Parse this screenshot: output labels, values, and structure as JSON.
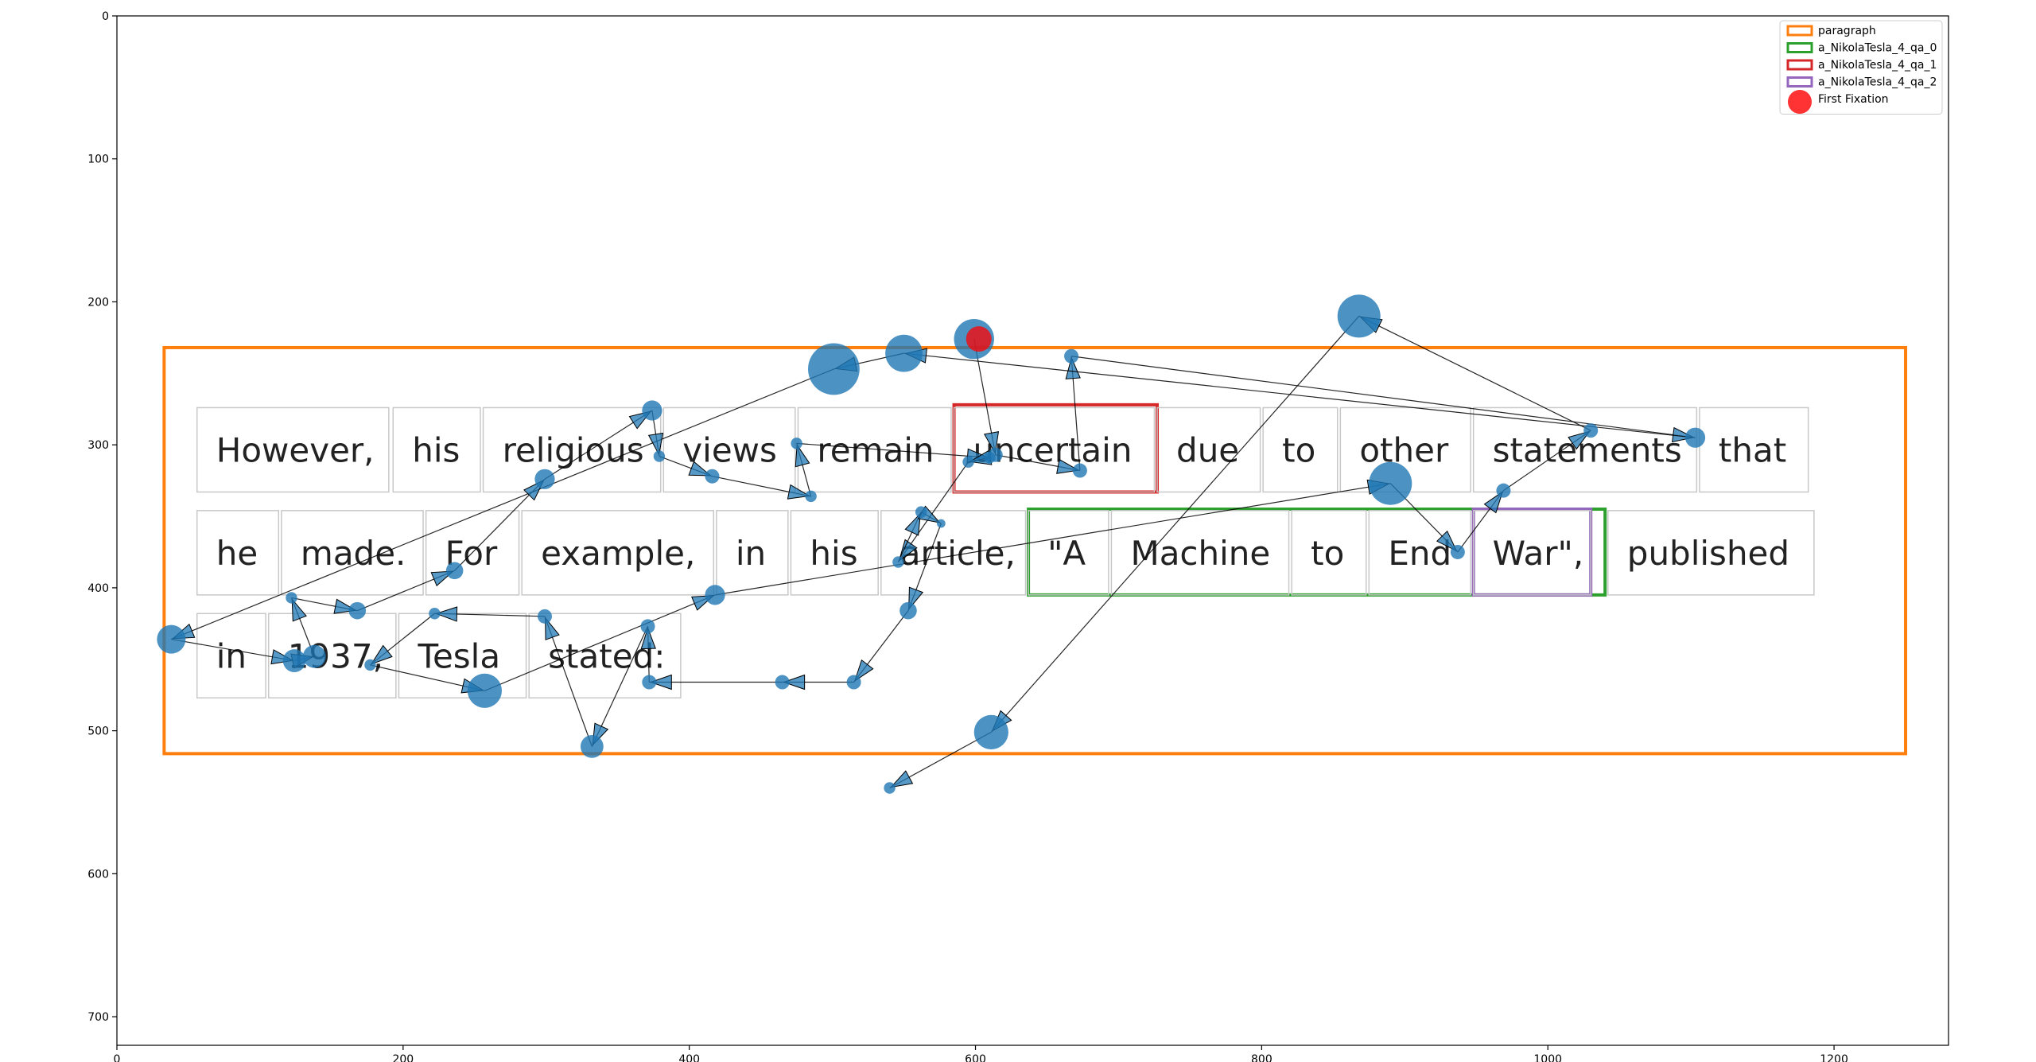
{
  "chart_data": {
    "type": "scatter",
    "title": "",
    "xlabel": "",
    "ylabel": "",
    "xlim": [
      0,
      1280
    ],
    "ylim": [
      720,
      0
    ],
    "xticks": [
      0,
      200,
      400,
      600,
      800,
      1000,
      1200
    ],
    "yticks": [
      0,
      100,
      200,
      300,
      400,
      500,
      600,
      700
    ],
    "grid": false,
    "legend_position": "top-right",
    "colors": {
      "paragraph": "#ff7f0e",
      "qa_0": "#2ca02c",
      "qa_1": "#d62728",
      "qa_2": "#9467bd",
      "fixation": "#1f77b4",
      "first_fixation": "#ff0000",
      "word_box": "#c8c8c8"
    },
    "legend": [
      {
        "label": "paragraph",
        "kind": "box",
        "color": "#ff7f0e"
      },
      {
        "label": "a_NikolaTesla_4_qa_0",
        "kind": "box",
        "color": "#2ca02c"
      },
      {
        "label": "a_NikolaTesla_4_qa_1",
        "kind": "box",
        "color": "#d62728"
      },
      {
        "label": "a_NikolaTesla_4_qa_2",
        "kind": "box",
        "color": "#9467bd"
      },
      {
        "label": "First Fixation",
        "kind": "dot",
        "color": "#ff0000"
      }
    ],
    "regions": [
      {
        "name": "paragraph",
        "x0": 33,
        "y0": 232,
        "x1": 1250,
        "y1": 516,
        "color": "#ff7f0e"
      },
      {
        "name": "a_NikolaTesla_4_qa_0",
        "x0": 637,
        "y0": 345,
        "x1": 1040,
        "y1": 405,
        "color": "#2ca02c"
      },
      {
        "name": "a_NikolaTesla_4_qa_1",
        "x0": 585,
        "y0": 272,
        "x1": 727,
        "y1": 333,
        "color": "#d62728"
      },
      {
        "name": "a_NikolaTesla_4_qa_2",
        "x0": 948,
        "y0": 345,
        "x1": 1030,
        "y1": 405,
        "color": "#9467bd"
      }
    ],
    "words": [
      {
        "text": "However,",
        "x0": 56,
        "y0": 274,
        "x1": 190,
        "y1": 333
      },
      {
        "text": "his",
        "x0": 193,
        "y0": 274,
        "x1": 254,
        "y1": 333
      },
      {
        "text": "religious",
        "x0": 256,
        "y0": 274,
        "x1": 380,
        "y1": 333
      },
      {
        "text": "views",
        "x0": 382,
        "y0": 274,
        "x1": 474,
        "y1": 333
      },
      {
        "text": "remain",
        "x0": 476,
        "y0": 274,
        "x1": 583,
        "y1": 333
      },
      {
        "text": "uncertain",
        "x0": 585,
        "y0": 274,
        "x1": 725,
        "y1": 333
      },
      {
        "text": "due",
        "x0": 727,
        "y0": 274,
        "x1": 799,
        "y1": 333
      },
      {
        "text": "to",
        "x0": 801,
        "y0": 274,
        "x1": 853,
        "y1": 333
      },
      {
        "text": "other",
        "x0": 855,
        "y0": 274,
        "x1": 946,
        "y1": 333
      },
      {
        "text": "statements",
        "x0": 948,
        "y0": 274,
        "x1": 1104,
        "y1": 333
      },
      {
        "text": "that",
        "x0": 1106,
        "y0": 274,
        "x1": 1182,
        "y1": 333
      },
      {
        "text": "he",
        "x0": 56,
        "y0": 346,
        "x1": 113,
        "y1": 405
      },
      {
        "text": "made.",
        "x0": 115,
        "y0": 346,
        "x1": 214,
        "y1": 405
      },
      {
        "text": "For",
        "x0": 216,
        "y0": 346,
        "x1": 281,
        "y1": 405
      },
      {
        "text": "example,",
        "x0": 283,
        "y0": 346,
        "x1": 417,
        "y1": 405
      },
      {
        "text": "in",
        "x0": 419,
        "y0": 346,
        "x1": 469,
        "y1": 405
      },
      {
        "text": "his",
        "x0": 471,
        "y0": 346,
        "x1": 532,
        "y1": 405
      },
      {
        "text": "article,",
        "x0": 534,
        "y0": 346,
        "x1": 635,
        "y1": 405
      },
      {
        "text": "\"A",
        "x0": 637,
        "y0": 346,
        "x1": 693,
        "y1": 405
      },
      {
        "text": "Machine",
        "x0": 695,
        "y0": 346,
        "x1": 819,
        "y1": 405
      },
      {
        "text": "to",
        "x0": 821,
        "y0": 346,
        "x1": 873,
        "y1": 405
      },
      {
        "text": "End",
        "x0": 875,
        "y0": 346,
        "x1": 946,
        "y1": 405
      },
      {
        "text": "War\",",
        "x0": 948,
        "y0": 346,
        "x1": 1030,
        "y1": 405
      },
      {
        "text": "published",
        "x0": 1042,
        "y0": 346,
        "x1": 1186,
        "y1": 405
      },
      {
        "text": "in",
        "x0": 56,
        "y0": 418,
        "x1": 104,
        "y1": 477
      },
      {
        "text": "1937,",
        "x0": 106,
        "y0": 418,
        "x1": 195,
        "y1": 477
      },
      {
        "text": "Tesla",
        "x0": 197,
        "y0": 418,
        "x1": 286,
        "y1": 477
      },
      {
        "text": "stated:",
        "x0": 288,
        "y0": 418,
        "x1": 394,
        "y1": 477
      }
    ],
    "fixations": [
      {
        "x": 599,
        "y": 226,
        "r": 14,
        "first": true
      },
      {
        "x": 614,
        "y": 307,
        "r": 5
      },
      {
        "x": 673,
        "y": 318,
        "r": 5
      },
      {
        "x": 667,
        "y": 238,
        "r": 5
      },
      {
        "x": 1103,
        "y": 295,
        "r": 7
      },
      {
        "x": 550,
        "y": 236,
        "r": 13
      },
      {
        "x": 501,
        "y": 247,
        "r": 18
      },
      {
        "x": 38,
        "y": 436,
        "r": 10
      },
      {
        "x": 124,
        "y": 451,
        "r": 8
      },
      {
        "x": 138,
        "y": 448,
        "r": 8
      },
      {
        "x": 122,
        "y": 407,
        "r": 4
      },
      {
        "x": 168,
        "y": 416,
        "r": 6
      },
      {
        "x": 236,
        "y": 388,
        "r": 6
      },
      {
        "x": 299,
        "y": 324,
        "r": 7
      },
      {
        "x": 374,
        "y": 276,
        "r": 7
      },
      {
        "x": 379,
        "y": 308,
        "r": 4
      },
      {
        "x": 416,
        "y": 322,
        "r": 5
      },
      {
        "x": 485,
        "y": 336,
        "r": 4
      },
      {
        "x": 475,
        "y": 299,
        "r": 4
      },
      {
        "x": 610,
        "y": 309,
        "r": 4
      },
      {
        "x": 595,
        "y": 312,
        "r": 4
      },
      {
        "x": 546,
        "y": 382,
        "r": 4
      },
      {
        "x": 562,
        "y": 347,
        "r": 4
      },
      {
        "x": 576,
        "y": 355,
        "r": 3
      },
      {
        "x": 553,
        "y": 416,
        "r": 6
      },
      {
        "x": 515,
        "y": 466,
        "r": 5
      },
      {
        "x": 465,
        "y": 466,
        "r": 5
      },
      {
        "x": 372,
        "y": 466,
        "r": 5
      },
      {
        "x": 371,
        "y": 427,
        "r": 5
      },
      {
        "x": 332,
        "y": 511,
        "r": 8
      },
      {
        "x": 299,
        "y": 420,
        "r": 5
      },
      {
        "x": 222,
        "y": 418,
        "r": 4
      },
      {
        "x": 177,
        "y": 454,
        "r": 4
      },
      {
        "x": 257,
        "y": 472,
        "r": 12
      },
      {
        "x": 418,
        "y": 405,
        "r": 7
      },
      {
        "x": 890,
        "y": 327,
        "r": 15
      },
      {
        "x": 937,
        "y": 375,
        "r": 5
      },
      {
        "x": 969,
        "y": 332,
        "r": 5
      },
      {
        "x": 1030,
        "y": 290,
        "r": 5
      },
      {
        "x": 868,
        "y": 210,
        "r": 15
      },
      {
        "x": 611,
        "y": 501,
        "r": 12
      },
      {
        "x": 540,
        "y": 540,
        "r": 4
      }
    ]
  }
}
